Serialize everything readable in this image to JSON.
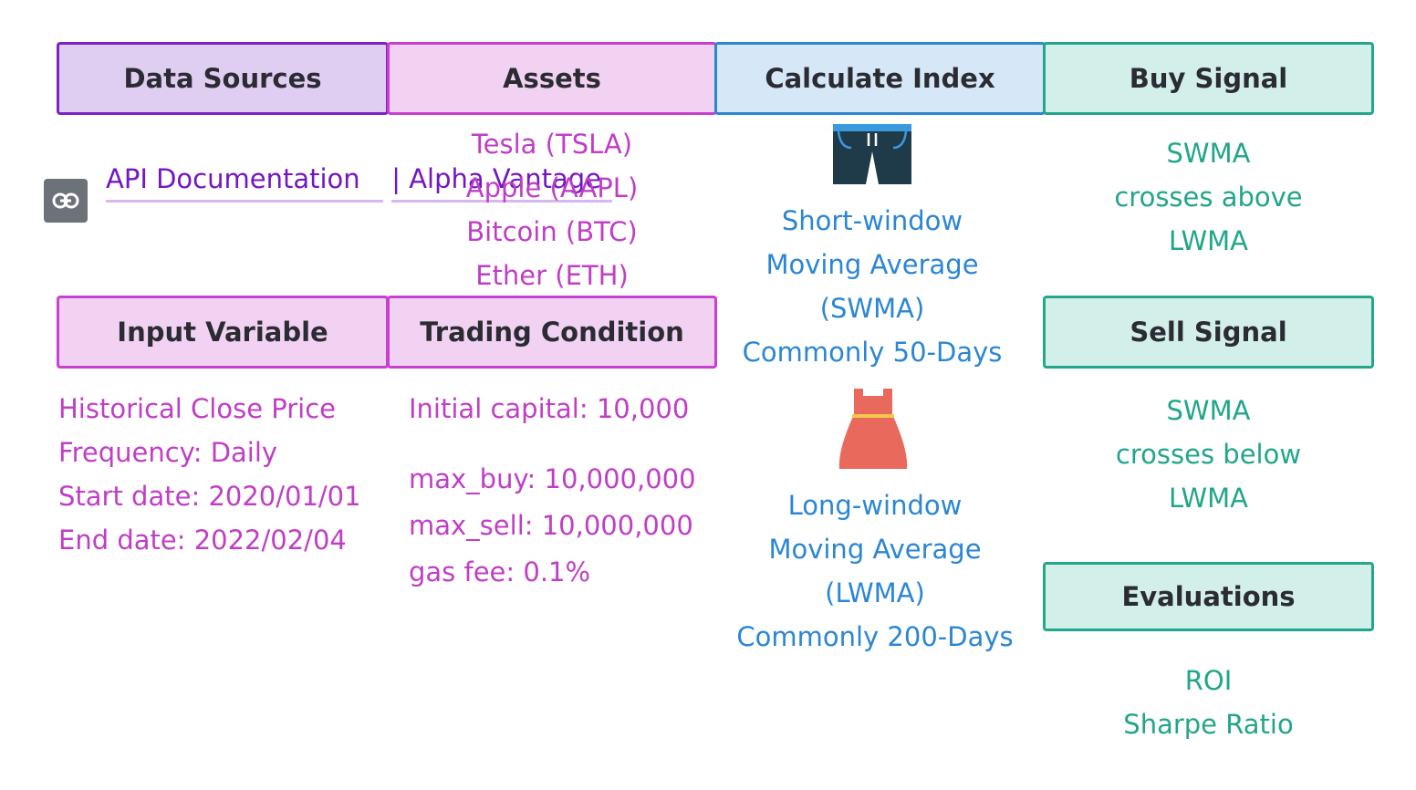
{
  "headers": {
    "data_sources": "Data Sources",
    "assets": "Assets",
    "calculate_index": "Calculate Index",
    "buy_signal": "Buy Signal",
    "input_variable": "Input Variable",
    "trading_condition": "Trading Condition",
    "sell_signal": "Sell Signal",
    "evaluations": "Evaluations"
  },
  "data_sources": {
    "link_icon": "link-icon",
    "link_lines": [
      "API Documentation",
      "| Alpha Vantage"
    ]
  },
  "assets": [
    "Tesla (TSLA)",
    "Apple (AAPL)",
    "Bitcoin (BTC)",
    "Ether (ETH)"
  ],
  "input_variable": [
    "Historical Close Price",
    "Frequency: Daily",
    "Start date: 2020/01/01",
    "End date: 2022/02/04"
  ],
  "trading_condition": {
    "initial_capital": "Initial capital: 10,000",
    "limits": [
      "max_buy: 10,000,000",
      "max_sell: 10,000,000",
      "gas fee: 0.1%"
    ]
  },
  "calculate_index": {
    "short": {
      "icon": "shorts-icon",
      "lines": [
        "Short-window",
        "Moving Average",
        "(SWMA)",
        "Commonly 50-Days"
      ]
    },
    "long": {
      "icon": "dress-icon",
      "lines": [
        "Long-window",
        "Moving Average",
        "(LWMA)",
        "Commonly 200-Days"
      ]
    }
  },
  "buy_signal": [
    "SWMA",
    "crosses above",
    "LWMA"
  ],
  "sell_signal": [
    "SWMA",
    "crosses below",
    "LWMA"
  ],
  "evaluations": [
    "ROI",
    "Sharpe Ratio"
  ],
  "colors": {
    "purple_dark": "#7b22c4",
    "purple": "#c940d0",
    "blue": "#2b86d4",
    "teal": "#23a68b"
  }
}
